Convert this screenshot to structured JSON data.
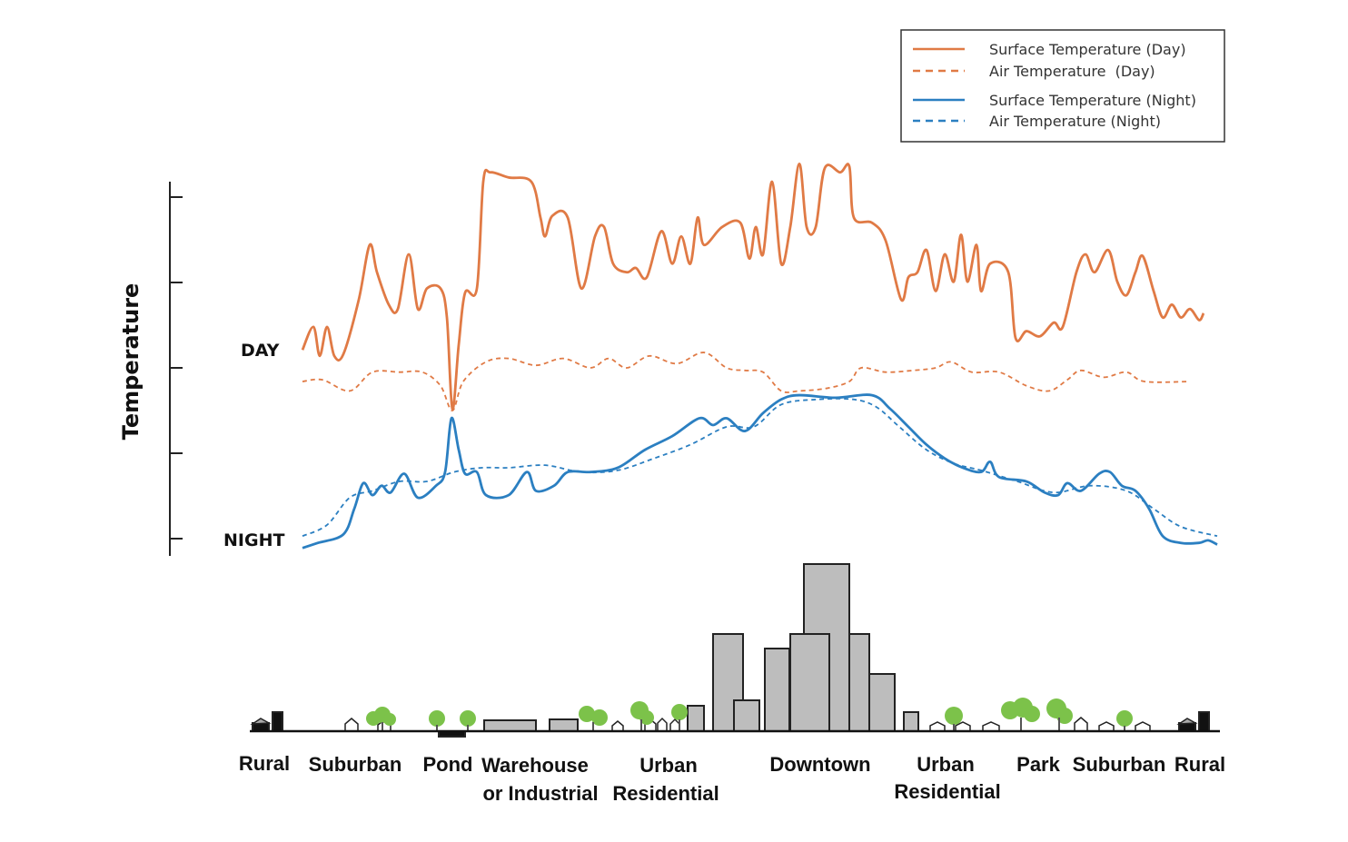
{
  "chart_data": {
    "type": "line",
    "title": "",
    "xlabel": "",
    "ylabel": "Temperature",
    "y_ticks": [
      0,
      10,
      20,
      30,
      40
    ],
    "y_tick_labels_shown": false,
    "xlim": [
      0,
      101
    ],
    "ylim": [
      -2,
      45
    ],
    "grid": false,
    "legend_position": "top-right",
    "annotations": {
      "day": "DAY",
      "night": "NIGHT"
    },
    "colors": {
      "day": "#e07a45",
      "night": "#2b7fc1"
    },
    "series": [
      {
        "name": "Surface Temperature (Day)",
        "style": "solid",
        "color": "#e07a45",
        "x": [
          0.3,
          1.5,
          2.2,
          3,
          3.8,
          4.8,
          6.5,
          7.7,
          8.5,
          9.8,
          10.8,
          12,
          13,
          14,
          15.5,
          16.2,
          16.8,
          17.5,
          18.2,
          19.5,
          20.2,
          21,
          23,
          25.5,
          26.5,
          27,
          27.8,
          29.5,
          31,
          32.5,
          33.5,
          34.5,
          36,
          37,
          38.2,
          39.8,
          41,
          42,
          43,
          43.8,
          44.5,
          46.5,
          48.5,
          49.5,
          50.2,
          51,
          52,
          53,
          54,
          55,
          55.8,
          56.8,
          57.8,
          59.5,
          60.5,
          61,
          63,
          64.5,
          66.2,
          67,
          68,
          69,
          70,
          71,
          72,
          72.8,
          73.5,
          74.5,
          75,
          76,
          78,
          78.8,
          80,
          81.5,
          83,
          84,
          85.5,
          86.5,
          87.5,
          89,
          90,
          91,
          92,
          92.8,
          94,
          95,
          96,
          97,
          98,
          99,
          99.5
        ],
        "y": [
          22.1,
          24.8,
          21.4,
          24.8,
          21.4,
          21.6,
          28,
          34.4,
          31.2,
          27.4,
          26.9,
          33.3,
          26.9,
          29.3,
          29.3,
          25.9,
          15.2,
          22.7,
          28.8,
          29.3,
          41.8,
          42.9,
          42.3,
          41.8,
          37.6,
          35.4,
          37.8,
          37.6,
          29.3,
          35.4,
          36.5,
          32.2,
          31.2,
          31.7,
          30.6,
          36,
          32.2,
          35.4,
          32.2,
          37.6,
          34.4,
          36.5,
          37,
          32.8,
          36.5,
          33.3,
          41.8,
          32.2,
          36.5,
          43.9,
          36.5,
          36.5,
          43.4,
          42.9,
          43.6,
          37.6,
          37,
          34.9,
          28,
          30.6,
          31.2,
          33.8,
          29,
          33.3,
          30.1,
          35.6,
          30.1,
          34.4,
          29,
          32.2,
          31.2,
          23.5,
          24.3,
          23.7,
          25.3,
          24.8,
          31.2,
          33.3,
          31.2,
          33.8,
          30.1,
          28.5,
          31.2,
          33.1,
          29,
          25.9,
          27.4,
          25.9,
          26.9,
          25.6,
          26.4
        ]
      },
      {
        "name": "Air Temperature  (Day)",
        "style": "dashed",
        "color": "#e07a45",
        "x": [
          0.3,
          2.5,
          5.5,
          8,
          11,
          13.5,
          15.5,
          16.8,
          18,
          20.5,
          23,
          26,
          29,
          32,
          34,
          36,
          38.5,
          41.5,
          44.5,
          47,
          49,
          51,
          53,
          55,
          58,
          60.5,
          61.8,
          64.5,
          67.5,
          70,
          71.7,
          74,
          77,
          80,
          82.5,
          84.5,
          86,
          88.5,
          91,
          93,
          98
        ],
        "y": [
          18.4,
          18.6,
          17.3,
          19.5,
          19.5,
          19.5,
          17.9,
          15,
          18.4,
          20.7,
          21.1,
          20.3,
          21.1,
          20,
          21.1,
          20,
          21.4,
          20.5,
          21.8,
          20,
          19.7,
          19.5,
          17.3,
          17.3,
          17.6,
          18.4,
          20,
          19.5,
          19.7,
          20,
          20.7,
          19.5,
          19.5,
          17.9,
          17.3,
          18.6,
          19.7,
          18.9,
          19.5,
          18.4,
          18.4
        ]
      },
      {
        "name": "Surface Temperature (Night)",
        "style": "solid",
        "color": "#2b7fc1",
        "x": [
          0.3,
          2,
          4.8,
          6,
          7,
          8,
          9,
          10,
          11.5,
          13,
          15,
          16,
          16.7,
          17.5,
          18.2,
          19.5,
          20.5,
          23,
          25,
          26,
          28,
          29.5,
          32,
          35,
          38,
          41,
          44,
          45.5,
          47,
          49,
          51,
          53,
          55,
          59,
          63,
          65,
          67,
          69,
          71,
          73,
          75,
          76,
          77,
          80,
          82,
          83.5,
          84.5,
          86,
          88,
          89.2,
          90.5,
          92,
          93.5,
          95,
          97,
          99,
          100,
          101
        ],
        "y": [
          -1.1,
          -0.5,
          0.5,
          3.5,
          6.5,
          5.1,
          6.2,
          5.4,
          7.6,
          4.8,
          6.2,
          7.8,
          14.1,
          10.4,
          7.6,
          7.8,
          5.1,
          5.1,
          7.8,
          5.6,
          6.2,
          7.8,
          7.8,
          8.3,
          10.4,
          12,
          14.1,
          13.3,
          14.1,
          12.6,
          14.7,
          16.3,
          16.8,
          16.5,
          16.8,
          15.2,
          13.1,
          11,
          9.4,
          8.3,
          7.8,
          9,
          7.2,
          6.7,
          5.4,
          5.1,
          6.5,
          5.6,
          7.6,
          7.8,
          6.2,
          5.6,
          3.5,
          0.3,
          -0.5,
          -0.5,
          -0.2,
          -0.7
        ]
      },
      {
        "name": "Air Temperature (Night)",
        "style": "dashed",
        "color": "#2b7fc1",
        "x": [
          0.3,
          3,
          5.5,
          8,
          11,
          14,
          17,
          20,
          23,
          27,
          31,
          35,
          39,
          43,
          47,
          50,
          53,
          57,
          61,
          63.5,
          66,
          69,
          72,
          75,
          79,
          83,
          87,
          91,
          94,
          97,
          101
        ],
        "y": [
          0.3,
          1.6,
          4.8,
          5.6,
          6.7,
          6.7,
          7.8,
          8.3,
          8.3,
          8.6,
          7.8,
          8,
          9.4,
          11,
          13.1,
          13.1,
          15.7,
          16.3,
          16.3,
          15.4,
          13.1,
          10.4,
          8.8,
          8,
          6.7,
          5.4,
          6.2,
          5.6,
          3.5,
          1.4,
          0.3
        ]
      }
    ],
    "x_categories": [
      {
        "line1": "Rural",
        "line2": ""
      },
      {
        "line1": "Suburban",
        "line2": ""
      },
      {
        "line1": "Pond",
        "line2": ""
      },
      {
        "line1": "Warehouse",
        "line2": "or Industrial"
      },
      {
        "line1": "Urban",
        "line2": "Residential"
      },
      {
        "line1": "Downtown",
        "line2": ""
      },
      {
        "line1": "Urban",
        "line2": "Residential"
      },
      {
        "line1": "Park",
        "line2": ""
      },
      {
        "line1": "Suburban",
        "line2": ""
      },
      {
        "line1": "Rural",
        "line2": ""
      }
    ]
  }
}
